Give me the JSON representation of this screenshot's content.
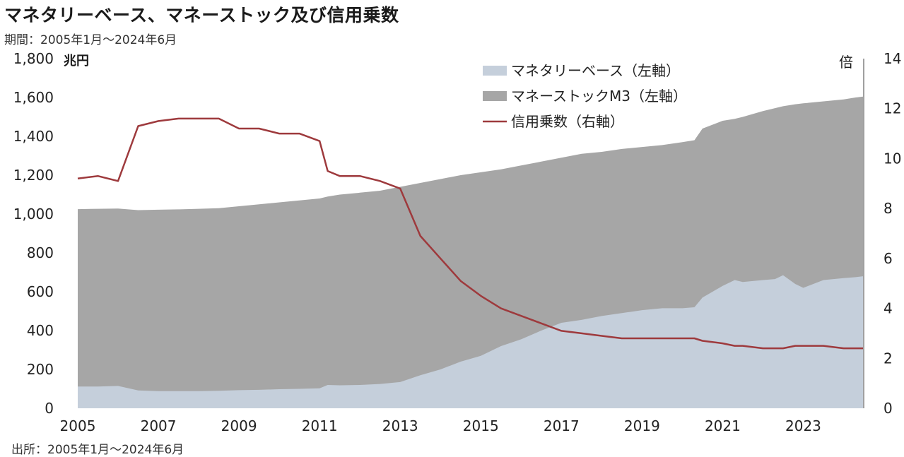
{
  "header": {
    "title": "マネタリーベース、マネーストック及び信用乗数",
    "subtitle": "期間：2005年1月～2024年6月",
    "source": "出所：2005年1月～2024年6月"
  },
  "chart_data": {
    "type": "area",
    "x": [
      2005.0,
      2005.5,
      2006.0,
      2006.5,
      2007.0,
      2007.5,
      2008.0,
      2008.5,
      2009.0,
      2009.5,
      2010.0,
      2010.5,
      2011.0,
      2011.2,
      2011.5,
      2012.0,
      2012.5,
      2013.0,
      2013.5,
      2014.0,
      2014.5,
      2015.0,
      2015.5,
      2016.0,
      2016.5,
      2017.0,
      2017.5,
      2018.0,
      2018.5,
      2019.0,
      2019.5,
      2020.0,
      2020.3,
      2020.5,
      2021.0,
      2021.3,
      2021.5,
      2022.0,
      2022.3,
      2022.5,
      2022.8,
      2023.0,
      2023.5,
      2024.0,
      2024.3,
      2024.5
    ],
    "series": [
      {
        "name": "マネタリーベース（左軸）",
        "axis": "left",
        "color": "#c5cfdb",
        "values": [
          112,
          112,
          115,
          92,
          88,
          88,
          88,
          90,
          93,
          95,
          98,
          100,
          103,
          120,
          118,
          120,
          125,
          135,
          170,
          200,
          240,
          270,
          320,
          355,
          400,
          440,
          455,
          475,
          490,
          505,
          515,
          515,
          520,
          570,
          630,
          660,
          650,
          660,
          665,
          685,
          640,
          620,
          660,
          670,
          675,
          680
        ]
      },
      {
        "name": "マネーストックM3（左軸）",
        "axis": "left",
        "color": "#a6a6a6",
        "values": [
          1025,
          1027,
          1028,
          1020,
          1022,
          1024,
          1027,
          1030,
          1040,
          1050,
          1060,
          1070,
          1080,
          1090,
          1100,
          1110,
          1120,
          1140,
          1160,
          1180,
          1200,
          1215,
          1230,
          1250,
          1270,
          1290,
          1310,
          1320,
          1335,
          1345,
          1355,
          1370,
          1380,
          1440,
          1480,
          1490,
          1500,
          1530,
          1545,
          1555,
          1565,
          1570,
          1580,
          1590,
          1600,
          1605
        ]
      },
      {
        "name": "信用乗数（右軸）",
        "axis": "right",
        "type": "line",
        "color": "#9e3a3d",
        "values": [
          9.2,
          9.3,
          9.1,
          11.3,
          11.5,
          11.6,
          11.6,
          11.6,
          11.2,
          11.2,
          11.0,
          11.0,
          10.7,
          9.5,
          9.3,
          9.3,
          9.1,
          8.8,
          6.9,
          6.0,
          5.1,
          4.5,
          4.0,
          3.7,
          3.4,
          3.1,
          3.0,
          2.9,
          2.8,
          2.8,
          2.8,
          2.8,
          2.8,
          2.7,
          2.6,
          2.5,
          2.5,
          2.4,
          2.4,
          2.4,
          2.5,
          2.5,
          2.5,
          2.4,
          2.4,
          2.4
        ]
      }
    ],
    "xticks": [
      "2005",
      "2007",
      "2009",
      "2011",
      "2013",
      "2015",
      "2017",
      "2019",
      "2021",
      "2023"
    ],
    "xtick_values": [
      2005,
      2007,
      2009,
      2011,
      2013,
      2015,
      2017,
      2019,
      2021,
      2023
    ],
    "xlim": [
      2005,
      2024.5
    ],
    "ylim_left": [
      0,
      1800
    ],
    "yticks_left": [
      "0",
      "200",
      "400",
      "600",
      "800",
      "1,000",
      "1,200",
      "1,400",
      "1,600",
      "1,800"
    ],
    "ytick_values_left": [
      0,
      200,
      400,
      600,
      800,
      1000,
      1200,
      1400,
      1600,
      1800
    ],
    "ylabel_left": "兆円",
    "ylim_right": [
      0,
      14
    ],
    "yticks_right": [
      "0",
      "2",
      "4",
      "6",
      "8",
      "10",
      "12",
      "14"
    ],
    "ytick_values_right": [
      0,
      2,
      4,
      6,
      8,
      10,
      12,
      14
    ],
    "ylabel_right": "倍",
    "legend": "top-right",
    "grid": false
  }
}
